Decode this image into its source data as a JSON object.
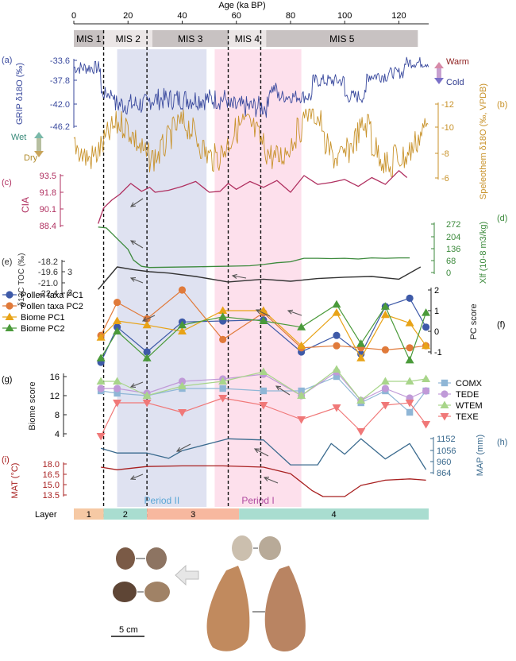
{
  "chart_data": {
    "type": "line",
    "title": "",
    "top_axis": {
      "label": "Age (ka BP)",
      "ticks": [
        0,
        20,
        40,
        60,
        80,
        100,
        120
      ],
      "range": [
        0,
        131
      ]
    },
    "mis": [
      {
        "label": "MIS 1",
        "from": 0,
        "to": 11
      },
      {
        "label": "MIS 2",
        "from": 11,
        "to": 29
      },
      {
        "label": "MIS 3",
        "from": 29,
        "to": 57
      },
      {
        "label": "MIS 4",
        "from": 57,
        "to": 71
      },
      {
        "label": "MIS 5",
        "from": 71,
        "to": 127
      }
    ],
    "dashed_lines": [
      11,
      27,
      57,
      69
    ],
    "periods": [
      {
        "label": "Period II",
        "from": 16,
        "to": 49,
        "color": "#dfe2f1"
      },
      {
        "label": "Period I",
        "from": 52,
        "to": 84,
        "color": "#fde0ec"
      }
    ],
    "panels": {
      "a": {
        "tag": "(a)",
        "ylabel": "GRIP δ18O (‰)",
        "ticks": [
          "-33.6",
          "-37.8",
          "-42.0",
          "-46.2"
        ],
        "color": "#3a4a9e",
        "warm_label": "Warm",
        "cold_label": "Cold"
      },
      "b": {
        "tag": "(b)",
        "ylabel": "Speleothem δ18O (‰, VPDB)",
        "ticks": [
          "-12",
          "-10",
          "-8",
          "-6"
        ],
        "color": "#c8922a",
        "wet_label": "Wet",
        "dry_label": "Dry"
      },
      "c": {
        "tag": "(c)",
        "ylabel": "CIA",
        "ticks": [
          "93.5",
          "91.8",
          "90.1",
          "88.4"
        ],
        "color": "#b03060",
        "x": [
          9,
          11,
          14,
          17,
          21,
          25,
          28,
          30,
          35,
          40,
          45,
          50,
          54,
          57,
          60,
          65,
          70,
          75,
          80,
          85,
          90,
          95,
          100,
          105,
          110,
          115,
          120,
          123
        ],
        "y": [
          88.6,
          90.2,
          91.0,
          91.6,
          92.7,
          91.9,
          92.3,
          91.8,
          92.0,
          92.4,
          92.9,
          91.8,
          91.9,
          92.7,
          92.1,
          92.9,
          92.3,
          93.0,
          91.8,
          93.5,
          92.6,
          92.8,
          93.1,
          92.4,
          93.3,
          92.6,
          94.0,
          93.3
        ]
      },
      "d": {
        "tag": "(d)",
        "ylabel": "Xlf (10-8 m3/kg)",
        "ticks": [
          "272",
          "204",
          "136",
          "68",
          "0"
        ],
        "color": "#3c8a3c",
        "x": [
          9,
          12,
          14,
          17,
          20,
          22,
          25,
          28,
          35,
          45,
          55,
          60,
          65,
          70,
          75,
          80,
          85,
          90,
          95,
          100,
          105,
          110,
          115,
          120,
          124
        ],
        "y": [
          255,
          250,
          220,
          175,
          130,
          70,
          35,
          28,
          30,
          32,
          35,
          36,
          38,
          45,
          55,
          60,
          80,
          80,
          78,
          80,
          76,
          82,
          80,
          82,
          82
        ]
      },
      "e": {
        "tag": "(e)",
        "ylabel": "δ13C TOC (‰)",
        "ticks": [
          "-18.2",
          "-19.6",
          "-21.0",
          "-22.4"
        ],
        "right_ticks": [
          "3",
          "2"
        ],
        "color": "#333333",
        "x": [
          9,
          16,
          22,
          28,
          35,
          45,
          57,
          70,
          80,
          90,
          100,
          110,
          120,
          128
        ],
        "y": [
          -21.5,
          -18.2,
          -18.6,
          -18.9,
          -19.1,
          -19.6,
          -20.4,
          -20.0,
          -20.3,
          -19.9,
          -19.7,
          -19.6,
          -20.0,
          -18.2
        ]
      },
      "f": {
        "tag": "(f)",
        "ylabel": "PC score",
        "ticks": [
          "2",
          "1",
          "0",
          "-1"
        ],
        "x": [
          10,
          16,
          27,
          40,
          55,
          70,
          84,
          97,
          106,
          115,
          124,
          130
        ],
        "series": [
          {
            "name": "Pollen taxa PC1",
            "color": "#3e5aa8",
            "marker": "circle",
            "values": [
              -1.5,
              0.2,
              -1.0,
              0.45,
              0.5,
              0.55,
              -1.0,
              -0.2,
              -1.1,
              1.2,
              1.6,
              0.2
            ]
          },
          {
            "name": "Pollen taxa PC2",
            "color": "#e07a3a",
            "marker": "circle",
            "values": [
              -0.2,
              1.4,
              0.6,
              2.0,
              -0.4,
              0.9,
              -0.8,
              -0.7,
              -0.8,
              -0.9,
              -0.8,
              -0.7
            ]
          },
          {
            "name": "Biome PC1",
            "color": "#e8a317",
            "marker": "triangle-up",
            "values": [
              -0.3,
              0.5,
              0.3,
              0.0,
              1.0,
              1.0,
              -0.7,
              0.9,
              -1.3,
              0.8,
              0.4,
              -0.7
            ]
          },
          {
            "name": "Biome PC2",
            "color": "#4a9a3a",
            "marker": "triangle-up",
            "values": [
              -1.3,
              0.0,
              -1.3,
              0.3,
              0.7,
              0.5,
              0.2,
              1.3,
              -0.6,
              1.2,
              -1.4,
              0.9
            ]
          }
        ]
      },
      "g": {
        "tag": "(g)",
        "ylabel": "Biome score",
        "ticks": [
          "16",
          "12",
          "8",
          "4"
        ],
        "x": [
          10,
          16,
          27,
          40,
          55,
          70,
          84,
          97,
          106,
          115,
          124,
          130
        ],
        "series": [
          {
            "name": "COMX",
            "color": "#8fb6d6",
            "marker": "square",
            "values": [
              13.0,
              12.5,
              12.0,
              13.5,
              13.5,
              13.0,
              13.0,
              16.0,
              10.5,
              13.0,
              8.5,
              13.0
            ]
          },
          {
            "name": "TEDE",
            "color": "#c09ad8",
            "marker": "circle",
            "values": [
              13.5,
              13.5,
              12.5,
              15.0,
              15.5,
              16.5,
              12.0,
              17.0,
              11.0,
              13.5,
              11.5,
              13.0
            ]
          },
          {
            "name": "WTEM",
            "color": "#a8d58a",
            "marker": "triangle-up",
            "values": [
              15.0,
              15.0,
              12.0,
              14.0,
              15.0,
              17.0,
              12.0,
              17.5,
              11.0,
              15.0,
              15.0,
              15.5
            ]
          },
          {
            "name": "TEXE",
            "color": "#f07878",
            "marker": "triangle-down",
            "values": [
              3.5,
              10.5,
              10.5,
              8.5,
              11.5,
              10.0,
              7.0,
              9.5,
              4.5,
              10.0,
              10.5,
              6.0
            ]
          }
        ]
      },
      "h": {
        "tag": "(h)",
        "ylabel": "MAP (mm)",
        "ticks": [
          "1152",
          "1056",
          "960",
          "864"
        ],
        "color": "#3a6a8e",
        "x": [
          10,
          16,
          27,
          35,
          40,
          57,
          70,
          80,
          90,
          95,
          100,
          106,
          115,
          124,
          130
        ],
        "y": [
          1070,
          1030,
          1030,
          985,
          1050,
          1150,
          1140,
          930,
          930,
          1110,
          1020,
          1150,
          980,
          1110,
          890
        ]
      },
      "i": {
        "tag": "(i)",
        "ylabel": "MAT (°C)",
        "ticks": [
          "18.0",
          "16.5",
          "15.0",
          "13.5"
        ],
        "color": "#a82020",
        "x": [
          10,
          16,
          27,
          40,
          55,
          70,
          80,
          88,
          92,
          100,
          106,
          115,
          124,
          130
        ],
        "y": [
          18.0,
          17.6,
          18.1,
          18.2,
          18.2,
          18.0,
          17.0,
          14.4,
          13.5,
          13.5,
          15.2,
          16.0,
          16.2,
          16.0
        ]
      }
    },
    "layers": {
      "label": "Layer",
      "segments": [
        {
          "label": "1",
          "from": 0,
          "to": 11,
          "color": "#f6c9a4"
        },
        {
          "label": "2",
          "from": 11,
          "to": 27,
          "color": "#a9ddd0"
        },
        {
          "label": "3",
          "from": 27,
          "to": 61,
          "color": "#f7b89f"
        },
        {
          "label": "4",
          "from": 61,
          "to": 131,
          "color": "#a9ddd0"
        }
      ]
    },
    "scale_bar_label": "5 cm"
  }
}
